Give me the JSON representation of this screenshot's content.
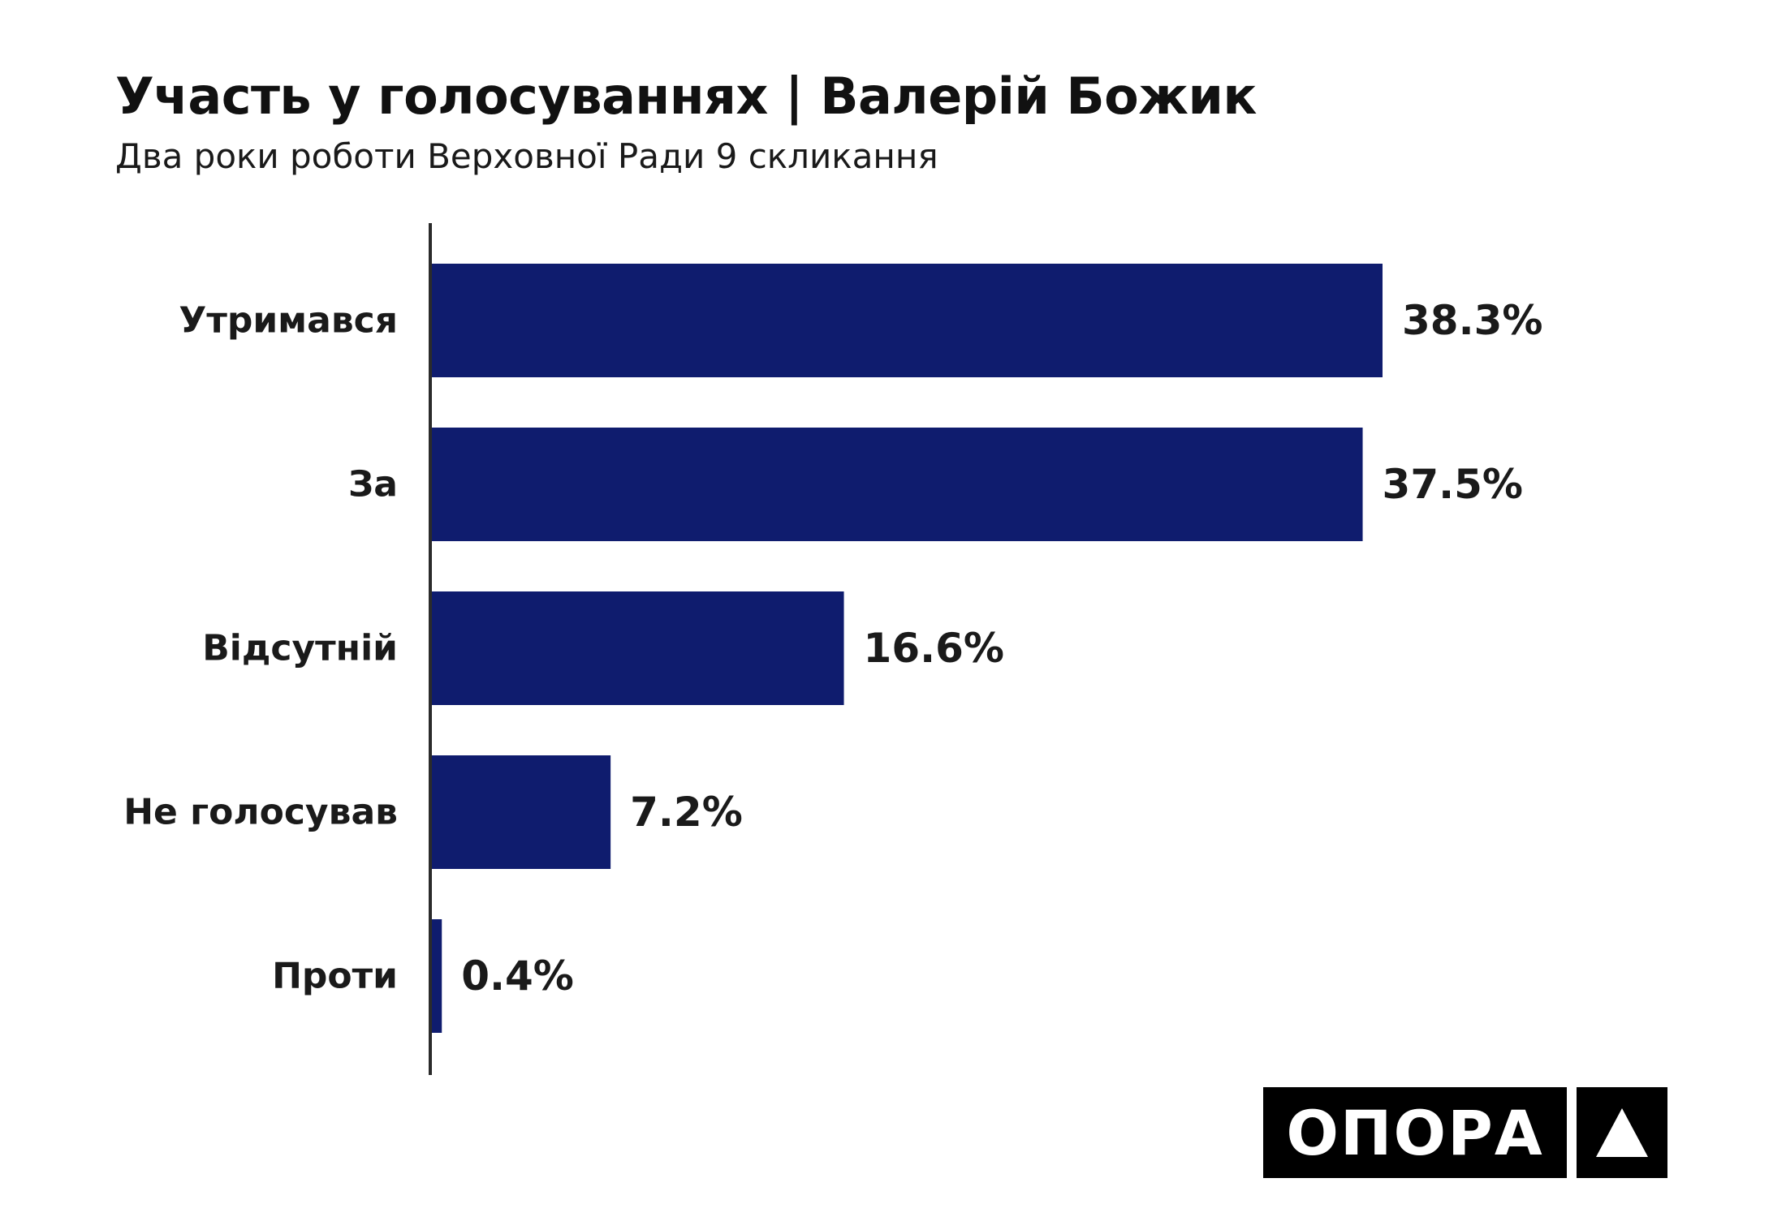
{
  "chart_data": {
    "type": "bar",
    "orientation": "horizontal",
    "title": "Участь у голосуваннях | Валерій Божик",
    "subtitle": "Два роки роботи Верховної Ради 9 скликання",
    "categories": [
      "Утримався",
      "За",
      "Відсутній",
      "Не голосував",
      "Проти"
    ],
    "values": [
      38.3,
      37.5,
      16.6,
      7.2,
      0.4
    ],
    "value_labels": [
      "38.3%",
      "37.5%",
      "16.6%",
      "7.2%",
      "0.4%"
    ],
    "xlim": [
      0,
      45
    ],
    "bar_color": "#0f1c6e",
    "grid": false
  },
  "logo": {
    "text": "ОПОРА",
    "mark": "triangle-icon"
  }
}
